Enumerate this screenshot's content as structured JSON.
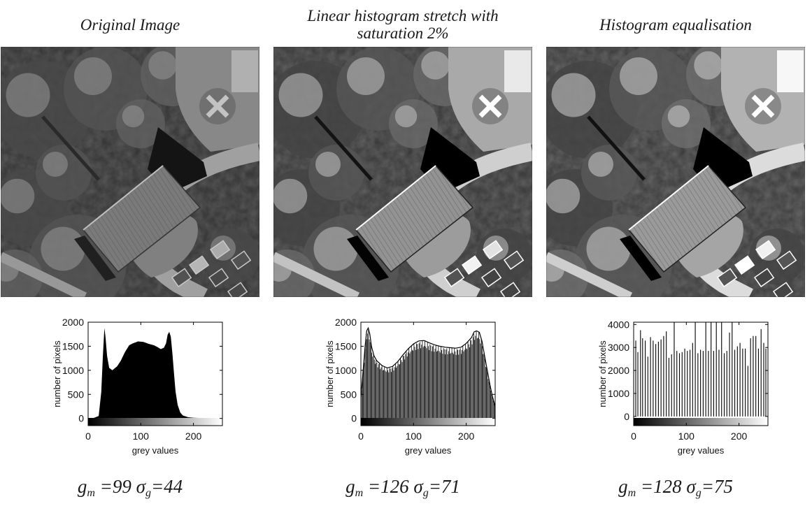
{
  "figure": {
    "panels": [
      {
        "title": "Original Image",
        "contrast": 0.78,
        "brightness": -0.05,
        "stats": {
          "gm_label": "g",
          "gm_sub": "m",
          "gm_value": " =99 ",
          "sigma_label": "σ",
          "sigma_sub": "g",
          "sigma_value": "=44"
        }
      },
      {
        "title": "Linear histogram stretch with\nsaturation 2%",
        "contrast": 1.25,
        "brightness": 0.0,
        "stats": {
          "gm_label": "g",
          "gm_sub": "m",
          "gm_value": " =126 ",
          "sigma_label": "σ",
          "sigma_sub": "g",
          "sigma_value": "=71"
        }
      },
      {
        "title": "Histogram equalisation",
        "contrast": 1.35,
        "brightness": 0.02,
        "stats": {
          "gm_label": "g",
          "gm_sub": "m",
          "gm_value": " =128 ",
          "sigma_label": "σ",
          "sigma_sub": "g",
          "sigma_value": "=75"
        }
      }
    ]
  },
  "chart_data": [
    {
      "type": "bar",
      "style": "filled-histogram",
      "xlabel": "grey values",
      "ylabel": "number of pixels",
      "xlim": [
        0,
        255
      ],
      "ylim": [
        -150,
        2000
      ],
      "xticks": [
        0,
        100,
        200
      ],
      "yticks": [
        0,
        500,
        1000,
        1500,
        2000
      ],
      "colorbar": "grey gradient 0-255",
      "x": [
        0,
        10,
        20,
        25,
        28,
        31,
        33,
        36,
        40,
        46,
        55,
        62,
        70,
        78,
        85,
        95,
        105,
        115,
        125,
        132,
        138,
        144,
        148,
        151,
        154,
        157,
        160,
        163,
        166,
        170,
        175,
        180,
        190,
        200,
        215,
        235,
        255
      ],
      "values": [
        0,
        5,
        50,
        550,
        1300,
        1880,
        1700,
        1300,
        1050,
        1000,
        1080,
        1200,
        1380,
        1520,
        1560,
        1600,
        1590,
        1550,
        1520,
        1480,
        1440,
        1470,
        1560,
        1740,
        1800,
        1700,
        1350,
        950,
        560,
        280,
        120,
        60,
        25,
        12,
        8,
        5,
        0
      ]
    },
    {
      "type": "bar",
      "style": "line-histogram",
      "xlabel": "grey values",
      "ylabel": "number of pixels",
      "xlim": [
        0,
        255
      ],
      "ylim": [
        -150,
        2000
      ],
      "xticks": [
        0,
        100,
        200
      ],
      "yticks": [
        0,
        500,
        1000,
        1500,
        2000
      ],
      "colorbar": "grey gradient 0-255",
      "x": [
        0,
        2,
        5,
        8,
        11,
        14,
        17,
        20,
        25,
        30,
        40,
        50,
        60,
        70,
        80,
        90,
        100,
        110,
        120,
        130,
        140,
        150,
        160,
        170,
        180,
        190,
        200,
        210,
        215,
        220,
        225,
        230,
        235,
        240,
        245,
        250,
        255
      ],
      "values": [
        450,
        700,
        1100,
        1500,
        1820,
        1880,
        1750,
        1500,
        1300,
        1200,
        1100,
        1050,
        1080,
        1180,
        1320,
        1450,
        1550,
        1610,
        1620,
        1570,
        1530,
        1500,
        1480,
        1470,
        1460,
        1480,
        1560,
        1680,
        1800,
        1820,
        1790,
        1600,
        1300,
        1000,
        700,
        450,
        250
      ]
    },
    {
      "type": "bar",
      "style": "sparse-bars",
      "xlabel": "grey values",
      "ylabel": "number of pixels",
      "xlim": [
        0,
        255
      ],
      "ylim": [
        -400,
        4100
      ],
      "xticks": [
        0,
        100,
        200
      ],
      "yticks": [
        0,
        1000,
        2000,
        3000,
        4000
      ],
      "colorbar": "grey gradient 0-255",
      "x": [
        0,
        4,
        8,
        13,
        17,
        22,
        27,
        32,
        37,
        42,
        47,
        52,
        57,
        62,
        67,
        72,
        77,
        82,
        87,
        92,
        97,
        102,
        107,
        112,
        117,
        122,
        127,
        132,
        137,
        142,
        147,
        152,
        157,
        162,
        167,
        172,
        177,
        182,
        187,
        192,
        197,
        202,
        207,
        212,
        217,
        222,
        227,
        232,
        237,
        242,
        247,
        251
      ],
      "values": [
        2900,
        3300,
        2800,
        3750,
        3400,
        3300,
        2600,
        3450,
        3300,
        3150,
        3250,
        3350,
        3500,
        3700,
        2550,
        2700,
        4200,
        2850,
        2750,
        2800,
        2950,
        2850,
        2900,
        3200,
        4200,
        2750,
        2900,
        2850,
        4200,
        2850,
        4200,
        2850,
        4200,
        2900,
        4200,
        2750,
        2850,
        3650,
        4200,
        2900,
        3050,
        3200,
        2950,
        2950,
        2200,
        3400,
        3500,
        3500,
        2950,
        3800,
        3200,
        2950
      ]
    }
  ]
}
